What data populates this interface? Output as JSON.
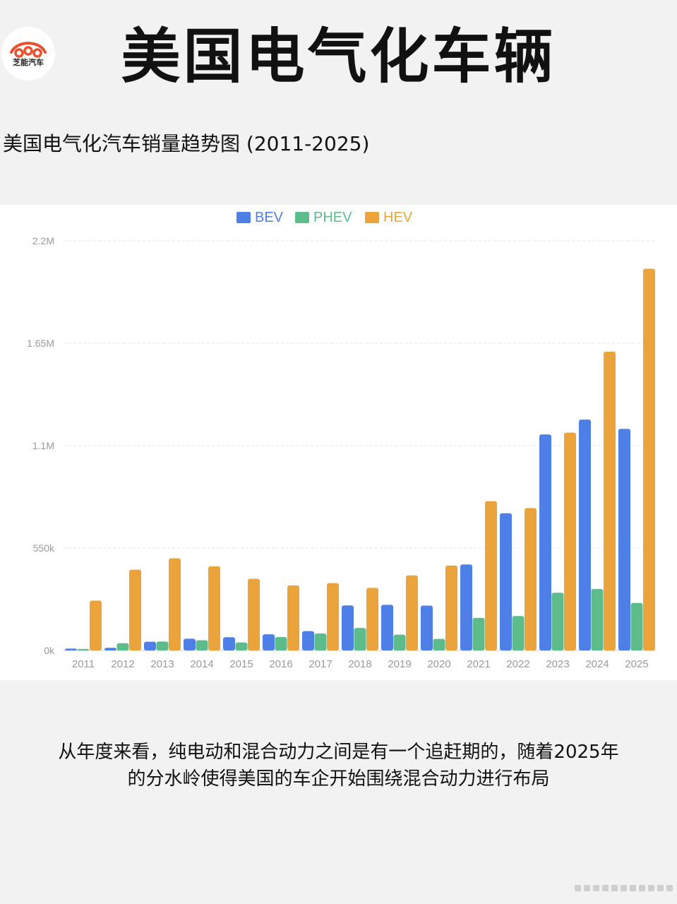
{
  "header": {
    "logo_text": "芝能汽车",
    "title": "美国电气化车辆"
  },
  "subtitle": "美国电气化汽车销量趋势图 (2011-2025)",
  "caption": {
    "line1": "从年度来看，纯电动和混合动力之间是有一个追赶期的，随着2025年",
    "line2": "的分水岭使得美国的车企开始围绕混合动力进行布局"
  },
  "colors": {
    "bev": "#4e7fe6",
    "phev": "#5cbd8a",
    "hev": "#eba43c",
    "logo_red": "#e8502e"
  },
  "chart_data": {
    "type": "bar",
    "title": "美国电气化汽车销量趋势图 (2011-2025)",
    "categories": [
      "2011",
      "2012",
      "2013",
      "2014",
      "2015",
      "2016",
      "2017",
      "2018",
      "2019",
      "2020",
      "2021",
      "2022",
      "2023",
      "2024",
      "2025"
    ],
    "series": [
      {
        "name": "BEV",
        "values": [
          10000,
          14000,
          47000,
          63000,
          71000,
          87000,
          104000,
          242000,
          245000,
          241000,
          462000,
          737000,
          1160000,
          1240000,
          1190000
        ]
      },
      {
        "name": "PHEV",
        "values": [
          8000,
          39000,
          48000,
          55000,
          43000,
          72000,
          91000,
          121000,
          85000,
          62000,
          175000,
          185000,
          310000,
          330000,
          255000
        ]
      },
      {
        "name": "HEV",
        "values": [
          268000,
          434000,
          495000,
          452000,
          385000,
          349000,
          362000,
          336000,
          403000,
          456000,
          802000,
          765000,
          1170000,
          1605000,
          2050000
        ]
      }
    ],
    "yticks": [
      "0k",
      "550k",
      "1.1M",
      "1.65M",
      "2.2M"
    ],
    "ytick_values": [
      0,
      550000,
      1100000,
      1650000,
      2200000
    ],
    "ylim": [
      0,
      2200000
    ],
    "legend": [
      "BEV",
      "PHEV",
      "HEV"
    ],
    "legend_position": "top-center",
    "grid": true
  }
}
